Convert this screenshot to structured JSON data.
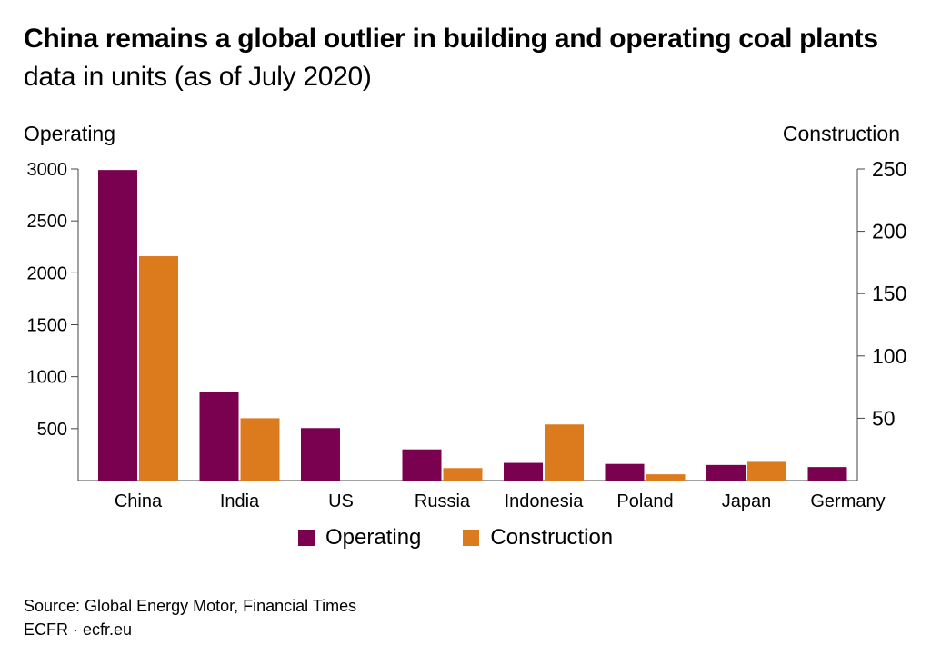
{
  "title": {
    "bold_part": "China remains a global outlier in building and operating coal plants",
    "normal_part": "data in units (as of July 2020)"
  },
  "axis_titles": {
    "left": "Operating",
    "right": "Construction"
  },
  "legend": {
    "operating": "Operating",
    "construction": "Construction"
  },
  "source_lines": [
    "Source: Global Energy Motor, Financial Times",
    "ECFR · ecfr.eu"
  ],
  "colors": {
    "operating": "#7a0050",
    "construction": "#dc7a1e",
    "axis": "#444444"
  },
  "chart_data": {
    "type": "bar",
    "title": "China remains a global outlier in building and operating coal plants",
    "subtitle": "data in units (as of July 2020)",
    "categories": [
      "China",
      "India",
      "US",
      "Russia",
      "Indonesia",
      "Poland",
      "Japan",
      "Germany"
    ],
    "series": [
      {
        "name": "Operating",
        "axis": "left",
        "values": [
          2990,
          855,
          505,
          300,
          170,
          160,
          150,
          130
        ]
      },
      {
        "name": "Construction",
        "axis": "right",
        "values": [
          180,
          50,
          0,
          10,
          45,
          5,
          15,
          0
        ]
      }
    ],
    "ylabel": "Operating",
    "y2label": "Construction",
    "ylim": [
      0,
      3000
    ],
    "y2lim": [
      0,
      250
    ],
    "yticks": [
      500,
      1000,
      1500,
      2000,
      2500,
      3000
    ],
    "y2ticks": [
      50,
      100,
      150,
      200,
      250
    ],
    "legend_position": "bottom",
    "grid": false
  }
}
